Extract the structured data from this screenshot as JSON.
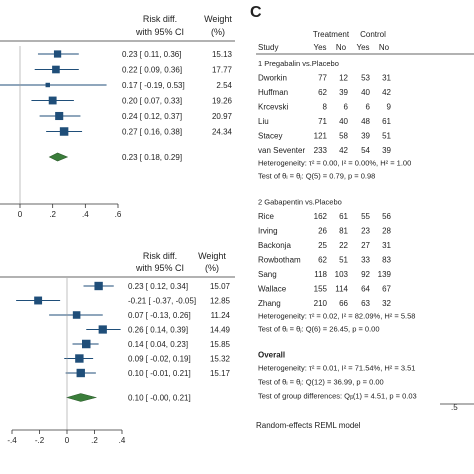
{
  "chart_data": [
    {
      "type": "forest",
      "header": {
        "effect": "Risk diff.",
        "ci": "with 95% CI",
        "weight": "Weight",
        "weight_unit": "(%)"
      },
      "rows": [
        {
          "es": 0.23,
          "lo": 0.11,
          "hi": 0.36,
          "weight": 15.13,
          "label": "0.23 [  0.11,  0.36]",
          "w": "15.13"
        },
        {
          "es": 0.22,
          "lo": 0.09,
          "hi": 0.36,
          "weight": 17.77,
          "label": "0.22 [  0.09,  0.36]",
          "w": "17.77"
        },
        {
          "es": 0.17,
          "lo": -0.19,
          "hi": 0.53,
          "weight": 2.54,
          "label": "0.17 [ -0.19,  0.53]",
          "w": "2.54"
        },
        {
          "es": 0.2,
          "lo": 0.07,
          "hi": 0.33,
          "weight": 19.26,
          "label": "0.20 [  0.07,  0.33]",
          "w": "19.26"
        },
        {
          "es": 0.24,
          "lo": 0.12,
          "hi": 0.37,
          "weight": 20.97,
          "label": "0.24 [  0.12,  0.37]",
          "w": "20.97"
        },
        {
          "es": 0.27,
          "lo": 0.16,
          "hi": 0.38,
          "weight": 24.34,
          "label": "0.27 [  0.16,  0.38]",
          "w": "24.34"
        }
      ],
      "overall": {
        "es": 0.23,
        "lo": 0.18,
        "hi": 0.29,
        "label": "0.23 [  0.18,  0.29]"
      },
      "xticks": [
        0,
        0.2,
        0.4,
        0.6
      ],
      "xtick_labels": [
        "0",
        ".2",
        ".4",
        ".6"
      ],
      "xlim": [
        -0.2,
        0.6
      ]
    },
    {
      "type": "forest",
      "header": {
        "effect": "Risk diff.",
        "ci": "with 95% CI",
        "weight": "Weight",
        "weight_unit": "(%)"
      },
      "rows": [
        {
          "es": 0.23,
          "lo": 0.12,
          "hi": 0.34,
          "weight": 15.07,
          "label": "0.23 [  0.12,  0.34]",
          "w": "15.07"
        },
        {
          "es": -0.21,
          "lo": -0.37,
          "hi": -0.05,
          "weight": 12.85,
          "label": "-0.21 [ -0.37, -0.05]",
          "w": "12.85"
        },
        {
          "es": 0.07,
          "lo": -0.13,
          "hi": 0.26,
          "weight": 11.24,
          "label": "0.07 [ -0.13,  0.26]",
          "w": "11.24"
        },
        {
          "es": 0.26,
          "lo": 0.14,
          "hi": 0.39,
          "weight": 14.49,
          "label": "0.26 [  0.14,  0.39]",
          "w": "14.49"
        },
        {
          "es": 0.14,
          "lo": 0.04,
          "hi": 0.23,
          "weight": 15.85,
          "label": "0.14 [  0.04,  0.23]",
          "w": "15.85"
        },
        {
          "es": 0.09,
          "lo": -0.02,
          "hi": 0.19,
          "weight": 15.32,
          "label": "0.09 [ -0.02,  0.19]",
          "w": "15.32"
        },
        {
          "es": 0.1,
          "lo": -0.01,
          "hi": 0.21,
          "weight": 15.17,
          "label": "0.10 [ -0.01,  0.21]",
          "w": "15.17"
        }
      ],
      "overall": {
        "es": 0.1,
        "lo": -0.0,
        "hi": 0.21,
        "label": "0.10 [ -0.00,  0.21]"
      },
      "xticks": [
        -0.4,
        -0.2,
        0,
        0.2,
        0.4
      ],
      "xtick_labels": [
        "-.4",
        "-.2",
        "0",
        ".2",
        ".4"
      ],
      "xlim": [
        -0.4,
        0.4
      ]
    },
    {
      "type": "table",
      "panel_letter": "C",
      "columns": {
        "study": "Study",
        "treatment": "Treatment",
        "control": "Control",
        "yes": "Yes",
        "no": "No"
      },
      "groups": [
        {
          "title": "1  Pregabalin vs.Placebo",
          "studies": [
            {
              "name": "Dworkin",
              "t_yes": "77",
              "t_no": "12",
              "c_yes": "53",
              "c_no": "31"
            },
            {
              "name": "Huffman",
              "t_yes": "62",
              "t_no": "39",
              "c_yes": "40",
              "c_no": "42"
            },
            {
              "name": "Krcevski",
              "t_yes": "8",
              "t_no": "6",
              "c_yes": "6",
              "c_no": "9"
            },
            {
              "name": "Liu",
              "t_yes": "71",
              "t_no": "40",
              "c_yes": "48",
              "c_no": "61"
            },
            {
              "name": "Stacey",
              "t_yes": "121",
              "t_no": "58",
              "c_yes": "39",
              "c_no": "51"
            },
            {
              "name": "van Seventer",
              "t_yes": "233",
              "t_no": "42",
              "c_yes": "54",
              "c_no": "39"
            }
          ],
          "heterogeneity": "Heterogeneity: τ² = 0.00, I² = 0.00%, H² = 1.00",
          "test": "Test of θᵢ = θⱼ: Q(5) = 0.79, p = 0.98"
        },
        {
          "title": "2  Gabapentin vs.Placebo",
          "studies": [
            {
              "name": "Rice",
              "t_yes": "162",
              "t_no": "61",
              "c_yes": "55",
              "c_no": "56"
            },
            {
              "name": "Irving",
              "t_yes": "26",
              "t_no": "81",
              "c_yes": "23",
              "c_no": "28"
            },
            {
              "name": "Backonja",
              "t_yes": "25",
              "t_no": "22",
              "c_yes": "27",
              "c_no": "31"
            },
            {
              "name": "Rowbotham",
              "t_yes": "62",
              "t_no": "51",
              "c_yes": "33",
              "c_no": "83"
            },
            {
              "name": "Sang",
              "t_yes": "118",
              "t_no": "103",
              "c_yes": "92",
              "c_no": "139"
            },
            {
              "name": "Wallace",
              "t_yes": "155",
              "t_no": "114",
              "c_yes": "64",
              "c_no": "67"
            },
            {
              "name": "Zhang",
              "t_yes": "210",
              "t_no": "66",
              "c_yes": "63",
              "c_no": "32"
            }
          ],
          "heterogeneity": "Heterogeneity: τ² = 0.02, I² = 82.09%, H² = 5.58",
          "test": "Test of θᵢ = θⱼ: Q(6) = 26.45, p = 0.00"
        }
      ],
      "overall_title": "Overall",
      "overall_heterogeneity": "Heterogeneity: τ² = 0.01, I² = 71.54%, H² = 3.51",
      "overall_test": "Test of θᵢ = θⱼ: Q(12) = 36.99, p = 0.00",
      "group_test": "Test of group differences: Qᵦ(1) = 4.51, p = 0.03",
      "axis_tick": ".5",
      "model_note": "Random-effects REML model"
    }
  ],
  "colors": {
    "square": "#1f4e79",
    "diamond": "#3a7d3a",
    "diamond_edge": "#2a5a2a",
    "line": "#1f4e79",
    "axis": "#333333"
  }
}
